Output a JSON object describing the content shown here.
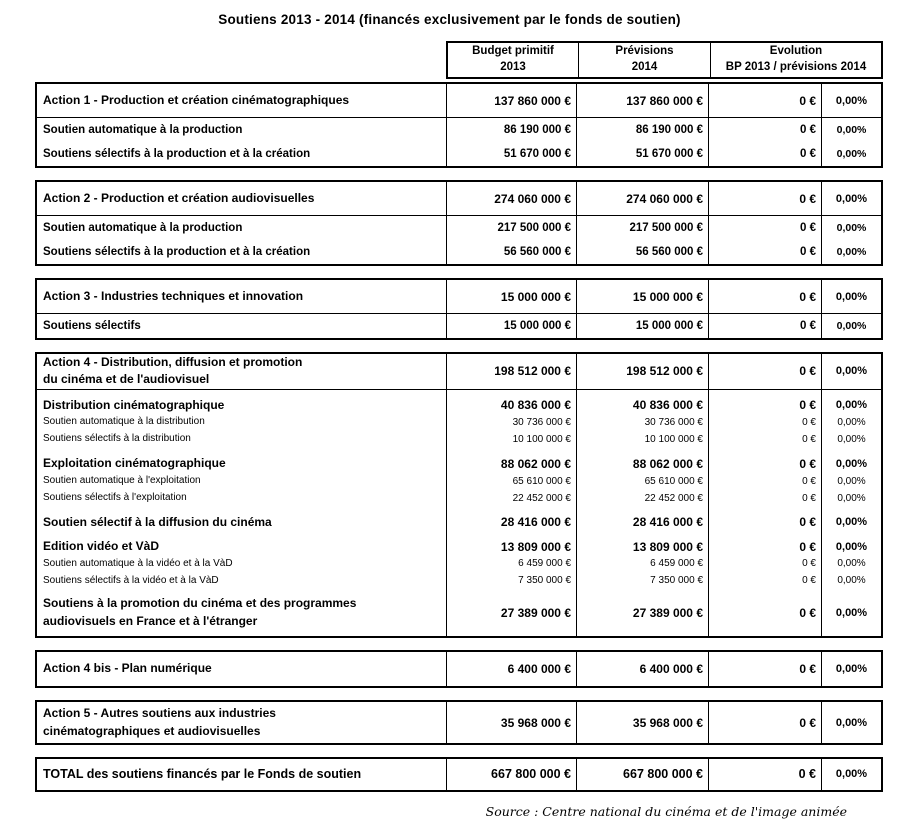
{
  "title": "Soutiens 2013 - 2014 (financés exclusivement par le fonds de soutien)",
  "header": {
    "col_budget_line1": "Budget primitif",
    "col_budget_line2": "2013",
    "col_previsions_line1": "Prévisions",
    "col_previsions_line2": "2014",
    "col_evolution_line1": "Evolution",
    "col_evolution_line2": "BP 2013 / prévisions 2014"
  },
  "table": {
    "blocks": [
      {
        "rows": [
          {
            "type": "action",
            "rule": true,
            "label": "Action 1 - Production et création cinématographiques",
            "v1": "137 860 000 €",
            "v2": "137 860 000 €",
            "v3": "0 €",
            "v4": "0,00%"
          },
          {
            "type": "sub",
            "label": "Soutien automatique à la production",
            "v1": "86 190 000 €",
            "v2": "86 190 000 €",
            "v3": "0 €",
            "v4": "0,00%"
          },
          {
            "type": "sub",
            "label": "Soutiens sélectifs à la production et à la création",
            "v1": "51 670 000 €",
            "v2": "51 670 000 €",
            "v3": "0 €",
            "v4": "0,00%"
          }
        ]
      },
      {
        "rows": [
          {
            "type": "action",
            "rule": true,
            "label": "Action 2 - Production et création audiovisuelles",
            "v1": "274 060 000 €",
            "v2": "274 060 000 €",
            "v3": "0 €",
            "v4": "0,00%"
          },
          {
            "type": "sub",
            "label": "Soutien automatique à la production",
            "v1": "217 500 000 €",
            "v2": "217 500 000 €",
            "v3": "0 €",
            "v4": "0,00%"
          },
          {
            "type": "sub",
            "label": "Soutiens sélectifs à la production et à la création",
            "v1": "56 560 000 €",
            "v2": "56 560 000 €",
            "v3": "0 €",
            "v4": "0,00%"
          }
        ]
      },
      {
        "rows": [
          {
            "type": "action",
            "rule": true,
            "label": "Action 3 - Industries techniques et innovation",
            "v1": "15 000 000 €",
            "v2": "15 000 000 €",
            "v3": "0 €",
            "v4": "0,00%"
          },
          {
            "type": "sub",
            "label": "Soutiens sélectifs",
            "v1": "15 000 000 €",
            "v2": "15 000 000 €",
            "v3": "0 €",
            "v4": "0,00%"
          }
        ]
      },
      {
        "rows": [
          {
            "type": "action",
            "rule": true,
            "label": "Action 4 - Distribution, diffusion et promotion\ndu cinéma et de l'audiovisuel",
            "v1": "198 512 000 €",
            "v2": "198 512 000 €",
            "v3": "0 €",
            "v4": "0,00%"
          },
          {
            "type": "group",
            "label": "Distribution cinématographique",
            "v1": "40 836 000 €",
            "v2": "40 836 000 €",
            "v3": "0 €",
            "v4": "0,00%"
          },
          {
            "type": "small",
            "label": "Soutien automatique à la distribution",
            "v1": "30 736 000 €",
            "v2": "30 736 000 €",
            "v3": "0 €",
            "v4": "0,00%"
          },
          {
            "type": "small",
            "label": "Soutiens sélectifs à la distribution",
            "v1": "10 100 000 €",
            "v2": "10 100 000 €",
            "v3": "0 €",
            "v4": "0,00%"
          },
          {
            "type": "group",
            "label": "Exploitation cinématographique",
            "v1": "88 062 000 €",
            "v2": "88 062 000 €",
            "v3": "0 €",
            "v4": "0,00%"
          },
          {
            "type": "small",
            "label": "Soutien automatique à l'exploitation",
            "v1": "65 610 000 €",
            "v2": "65 610 000 €",
            "v3": "0 €",
            "v4": "0,00%"
          },
          {
            "type": "small",
            "label": "Soutiens sélectifs à l'exploitation",
            "v1": "22 452 000 €",
            "v2": "22 452 000 €",
            "v3": "0 €",
            "v4": "0,00%"
          },
          {
            "type": "group",
            "label": "Soutien sélectif à la diffusion du cinéma",
            "v1": "28 416 000 €",
            "v2": "28 416 000 €",
            "v3": "0 €",
            "v4": "0,00%"
          },
          {
            "type": "group",
            "label": "Edition vidéo et VàD",
            "v1": "13 809 000 €",
            "v2": "13 809 000 €",
            "v3": "0 €",
            "v4": "0,00%"
          },
          {
            "type": "small",
            "label": "Soutien automatique à la vidéo et à la VàD",
            "v1": "6 459 000 €",
            "v2": "6 459 000 €",
            "v3": "0 €",
            "v4": "0,00%"
          },
          {
            "type": "small",
            "label": "Soutiens sélectifs à la vidéo et à la VàD",
            "v1": "7 350 000 €",
            "v2": "7 350 000 €",
            "v3": "0 €",
            "v4": "0,00%"
          },
          {
            "type": "promo",
            "label": "Soutiens à la promotion du cinéma et des programmes\naudiovisuels en France et à l'étranger",
            "v1": "27 389 000 €",
            "v2": "27 389 000 €",
            "v3": "0 €",
            "v4": "0,00%"
          }
        ]
      },
      {
        "rows": [
          {
            "type": "solo",
            "label": "Action 4 bis - Plan numérique",
            "v1": "6 400 000 €",
            "v2": "6 400 000 €",
            "v3": "0 €",
            "v4": "0,00%"
          }
        ]
      },
      {
        "rows": [
          {
            "type": "solo",
            "label": "Action 5 - Autres soutiens aux industries\ncinématographiques et audiovisuelles",
            "v1": "35 968 000 €",
            "v2": "35 968 000 €",
            "v3": "0 €",
            "v4": "0,00%"
          }
        ]
      },
      {
        "rows": [
          {
            "type": "total",
            "label": "TOTAL des soutiens financés par le Fonds de soutien",
            "v1": "667 800 000 €",
            "v2": "667 800 000 €",
            "v3": "0 €",
            "v4": "0,00%"
          }
        ]
      }
    ]
  },
  "source": "Source : Centre national du cinéma et de l'image animée"
}
